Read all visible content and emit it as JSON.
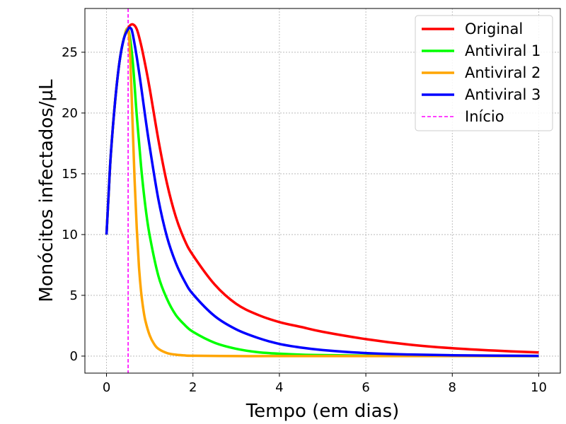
{
  "chart_data": {
    "type": "line",
    "title": "",
    "xlabel": "Tempo (em dias)",
    "ylabel": "Monócitos infectados/µL",
    "xlim": [
      -0.5,
      10.5
    ],
    "ylim": [
      -1.4,
      28.6
    ],
    "xticks": [
      0,
      2,
      4,
      6,
      8,
      10
    ],
    "yticks": [
      0,
      5,
      10,
      15,
      20,
      25
    ],
    "grid": true,
    "legend_position": "top-right",
    "intervention_line": {
      "name": "Início",
      "x": 0.5,
      "color": "#ff00ff",
      "style": "dashed"
    },
    "series": [
      {
        "name": "Original",
        "color": "#ff0000",
        "x": [
          0,
          0.05,
          0.1,
          0.2,
          0.3,
          0.4,
          0.5,
          0.6,
          0.7,
          0.8,
          0.9,
          1.0,
          1.2,
          1.4,
          1.6,
          1.8,
          2.0,
          2.5,
          3.0,
          3.5,
          4.0,
          4.5,
          5.0,
          6.0,
          7.0,
          8.0,
          9.0,
          10.0
        ],
        "values": [
          10.0,
          13.4,
          16.6,
          21.0,
          24.2,
          26.1,
          27.0,
          27.3,
          26.9,
          25.6,
          23.9,
          22.0,
          17.8,
          14.2,
          11.5,
          9.6,
          8.3,
          5.9,
          4.3,
          3.4,
          2.8,
          2.4,
          2.0,
          1.4,
          0.95,
          0.65,
          0.45,
          0.3
        ]
      },
      {
        "name": "Antiviral 1",
        "color": "#00ff00",
        "x": [
          0,
          0.05,
          0.1,
          0.2,
          0.3,
          0.4,
          0.5,
          0.6,
          0.7,
          0.8,
          0.9,
          1.0,
          1.2,
          1.4,
          1.6,
          1.8,
          2.0,
          2.5,
          3.0,
          3.5,
          4.0,
          4.5,
          5.0,
          6.0,
          7.0,
          8.0,
          9.0,
          10.0
        ],
        "values": [
          10.0,
          13.4,
          16.6,
          21.0,
          24.2,
          26.1,
          26.9,
          24.5,
          19.8,
          15.6,
          12.3,
          9.9,
          6.6,
          4.7,
          3.4,
          2.6,
          2.0,
          1.1,
          0.6,
          0.32,
          0.2,
          0.12,
          0.08,
          0.04,
          0.02,
          0.01,
          0.0,
          0.0
        ]
      },
      {
        "name": "Antiviral 2",
        "color": "#ffa500",
        "x": [
          0,
          0.05,
          0.1,
          0.2,
          0.3,
          0.4,
          0.5,
          0.55,
          0.6,
          0.65,
          0.7,
          0.75,
          0.8,
          0.85,
          0.9,
          1.0,
          1.1,
          1.2,
          1.4,
          1.6,
          1.8,
          2.0,
          3.0,
          4.0,
          6.0,
          8.0,
          10.0
        ],
        "values": [
          10.0,
          13.4,
          16.6,
          21.0,
          24.2,
          26.1,
          26.9,
          24.5,
          19.5,
          14.5,
          10.5,
          7.4,
          5.3,
          3.9,
          2.9,
          1.7,
          1.0,
          0.6,
          0.25,
          0.12,
          0.06,
          0.03,
          0.0,
          0.0,
          0.0,
          0.0,
          0.0
        ]
      },
      {
        "name": "Antiviral 3",
        "color": "#0000ff",
        "x": [
          0,
          0.05,
          0.1,
          0.2,
          0.3,
          0.4,
          0.5,
          0.55,
          0.6,
          0.7,
          0.8,
          0.9,
          1.0,
          1.2,
          1.4,
          1.6,
          1.8,
          2.0,
          2.5,
          3.0,
          3.5,
          4.0,
          4.5,
          5.0,
          6.0,
          7.0,
          8.0,
          9.0,
          10.0
        ],
        "values": [
          10.0,
          13.4,
          16.6,
          21.0,
          24.2,
          26.1,
          26.9,
          27.0,
          26.6,
          24.6,
          22.2,
          19.6,
          17.2,
          12.9,
          9.8,
          7.7,
          6.2,
          5.1,
          3.3,
          2.2,
          1.5,
          1.0,
          0.7,
          0.5,
          0.25,
          0.13,
          0.07,
          0.04,
          0.02
        ]
      }
    ]
  }
}
